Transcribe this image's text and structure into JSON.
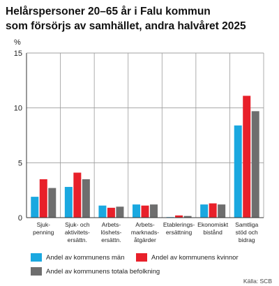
{
  "chart_data": {
    "type": "bar",
    "title_line1": "Helårspersoner 20–65 år i Falu kommun",
    "title_line2": "som försörjs av samhället, andra halvåret 2025",
    "ylabel": "%",
    "ylim": [
      0,
      15
    ],
    "yticks": [
      "0",
      "5",
      "10",
      "15"
    ],
    "grid": true,
    "legend_position": "bottom",
    "categories": [
      [
        "Sjuk-",
        "penning"
      ],
      [
        "Sjuk- och",
        "aktivitets-",
        "ersättn."
      ],
      [
        "Arbets-",
        "löshets-",
        "ersättn."
      ],
      [
        "Arbets-",
        "marknads-",
        "åtgärder"
      ],
      [
        "Etablerings-",
        "ersättning"
      ],
      [
        "Ekonomiskt",
        "bistånd"
      ],
      [
        "Samtliga",
        "stöd och",
        "bidrag"
      ]
    ],
    "series": [
      {
        "name": "Andel av kommunens män",
        "color": "#1aa8e0",
        "values": [
          1.9,
          2.8,
          1.1,
          1.2,
          0.05,
          1.2,
          8.4
        ]
      },
      {
        "name": "Andel av kommunens kvinnor",
        "color": "#e8202a",
        "values": [
          3.5,
          4.1,
          0.9,
          1.1,
          0.2,
          1.3,
          11.1
        ]
      },
      {
        "name": "Andel av kommunens totala befolkning",
        "color": "#6e6e6e",
        "values": [
          2.7,
          3.5,
          1.0,
          1.2,
          0.15,
          1.2,
          9.7
        ]
      }
    ]
  },
  "source": "Källa: SCB"
}
